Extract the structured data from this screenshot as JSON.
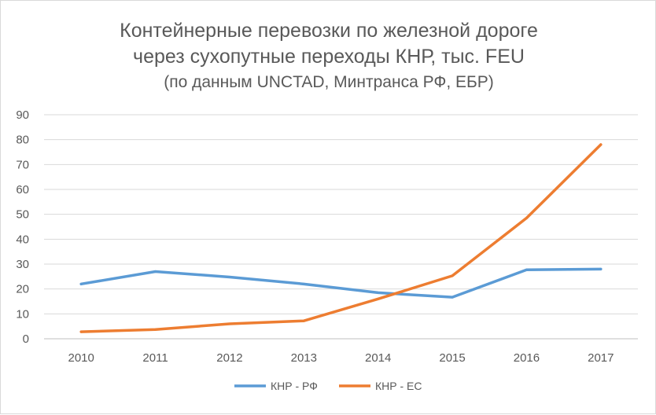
{
  "chart_data": {
    "type": "line",
    "title": "Контейнерные перевозки по железной дороге\nчерез сухопутные переходы КНР, тыс. FEU",
    "title_lines": [
      "Контейнерные перевозки по железной дороге",
      "через сухопутные переходы КНР, тыс. FEU"
    ],
    "subtitle": "(по данным UNCTAD, Минтранса РФ, ЕБР)",
    "xlabel": "",
    "ylabel": "",
    "categories": [
      "2010",
      "2011",
      "2012",
      "2013",
      "2014",
      "2015",
      "2016",
      "2017"
    ],
    "ylim": [
      0,
      90
    ],
    "yticks": [
      "0",
      "10",
      "20",
      "30",
      "40",
      "50",
      "60",
      "70",
      "80",
      "90"
    ],
    "grid": true,
    "legend_position": "bottom",
    "series": [
      {
        "name": "КНР - РФ",
        "color": "#5b9bd5",
        "values": [
          22,
          27,
          24.8,
          22,
          18.5,
          16.7,
          27.7,
          28
        ]
      },
      {
        "name": "КНР - ЕС",
        "color": "#ed7d31",
        "values": [
          2.8,
          3.7,
          6,
          7.2,
          16,
          25.3,
          48.5,
          78
        ]
      }
    ]
  }
}
